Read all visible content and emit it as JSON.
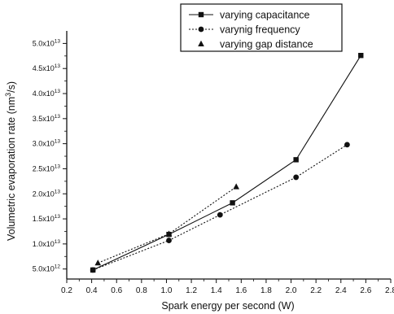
{
  "chart_data": {
    "type": "line",
    "title": "",
    "xlabel": "Spark energy per second (W)",
    "ylabel_main": "Volumetric evaporation rate (nm",
    "ylabel_sup": "3",
    "ylabel_tail": "/s)",
    "xlim": [
      0.2,
      2.8
    ],
    "ylim": [
      3000000000000.0,
      52500000000000.0
    ],
    "x_ticks": [
      {
        "v": 0.2,
        "label": "0.2"
      },
      {
        "v": 0.4,
        "label": "0.4"
      },
      {
        "v": 0.6,
        "label": "0.6"
      },
      {
        "v": 0.8,
        "label": "0.8"
      },
      {
        "v": 1.0,
        "label": "1.0"
      },
      {
        "v": 1.2,
        "label": "1.2"
      },
      {
        "v": 1.4,
        "label": "1.4"
      },
      {
        "v": 1.6,
        "label": "1.6"
      },
      {
        "v": 1.8,
        "label": "1.8"
      },
      {
        "v": 2.0,
        "label": "2.0"
      },
      {
        "v": 2.2,
        "label": "2.2"
      },
      {
        "v": 2.4,
        "label": "2.4"
      },
      {
        "v": 2.6,
        "label": "2.6"
      },
      {
        "v": 2.8,
        "label": "2.8"
      }
    ],
    "y_ticks": [
      {
        "v": 5000000000000.0,
        "mant": "5.0x10",
        "exp": "12"
      },
      {
        "v": 10000000000000.0,
        "mant": "1.0x10",
        "exp": "13"
      },
      {
        "v": 15000000000000.0,
        "mant": "1.5x10",
        "exp": "13"
      },
      {
        "v": 20000000000000.0,
        "mant": "2.0x10",
        "exp": "13"
      },
      {
        "v": 25000000000000.0,
        "mant": "2.5x10",
        "exp": "13"
      },
      {
        "v": 30000000000000.0,
        "mant": "3.0x10",
        "exp": "13"
      },
      {
        "v": 35000000000000.0,
        "mant": "3.5x10",
        "exp": "13"
      },
      {
        "v": 40000000000000.0,
        "mant": "4.0x10",
        "exp": "13"
      },
      {
        "v": 45000000000000.0,
        "mant": "4.5x10",
        "exp": "13"
      },
      {
        "v": 50000000000000.0,
        "mant": "5.0x10",
        "exp": "13"
      }
    ],
    "series": [
      {
        "name": "varying capacitance",
        "marker": "square",
        "line": "solid",
        "x": [
          0.41,
          1.02,
          1.53,
          2.04,
          2.56
        ],
        "y": [
          4800000000000.0,
          11900000000000.0,
          18200000000000.0,
          26800000000000.0,
          47600000000000.0
        ]
      },
      {
        "name": "varynig frequency",
        "marker": "circle",
        "line": "dotted",
        "x": [
          0.41,
          1.02,
          1.43,
          2.04,
          2.45
        ],
        "y": [
          4800000000000.0,
          10700000000000.0,
          15800000000000.0,
          23300000000000.0,
          29800000000000.0
        ]
      },
      {
        "name": "varying gap distance",
        "marker": "triangle",
        "line": "dotted",
        "x": [
          0.45,
          1.02,
          1.56
        ],
        "y": [
          6200000000000.0,
          12000000000000.0,
          21400000000000.0
        ]
      }
    ],
    "legend_position": "top-right",
    "grid": false
  }
}
